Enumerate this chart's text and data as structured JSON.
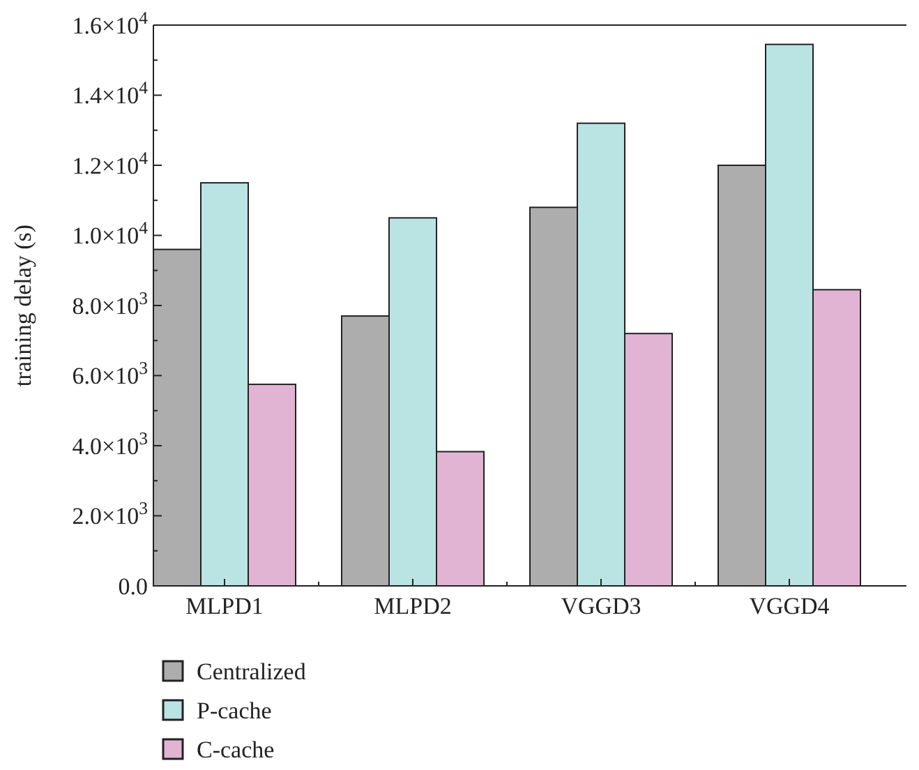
{
  "chart_data": {
    "type": "bar",
    "ylabel": "training delay (s)",
    "categories": [
      "MLPD1",
      "MLPD2",
      "VGGD3",
      "VGGD4"
    ],
    "series": [
      {
        "name": "Centralized",
        "color": "#adadad",
        "values": [
          9600,
          7700,
          10800,
          12000
        ]
      },
      {
        "name": "P-cache",
        "color": "#bae3e3",
        "values": [
          11500,
          10500,
          13200,
          15450
        ]
      },
      {
        "name": "C-cache",
        "color": "#e2b4d3",
        "values": [
          5750,
          3830,
          7200,
          8450
        ]
      }
    ],
    "ylim": [
      0,
      16000
    ],
    "yticks": [
      {
        "value": 0,
        "label": "0.0"
      },
      {
        "value": 1000,
        "label": null
      },
      {
        "value": 2000,
        "label": "2.0×10$^{3}$"
      },
      {
        "value": 3000,
        "label": null
      },
      {
        "value": 4000,
        "label": "4.0×10$^{3}$"
      },
      {
        "value": 5000,
        "label": null
      },
      {
        "value": 6000,
        "label": "6.0×10$^{3}$"
      },
      {
        "value": 7000,
        "label": null
      },
      {
        "value": 8000,
        "label": "8.0×10$^{3}$"
      },
      {
        "value": 9000,
        "label": null
      },
      {
        "value": 10000,
        "label": "1.0×10$^{4}$"
      },
      {
        "value": 11000,
        "label": null
      },
      {
        "value": 12000,
        "label": "1.2×10$^{4}$"
      },
      {
        "value": 13000,
        "label": null
      },
      {
        "value": 14000,
        "label": "1.4×10$^{4}$"
      },
      {
        "value": 15000,
        "label": null
      },
      {
        "value": 16000,
        "label": "1.6×10$^{4}$"
      }
    ],
    "legend": "bottom left",
    "grid": false
  }
}
